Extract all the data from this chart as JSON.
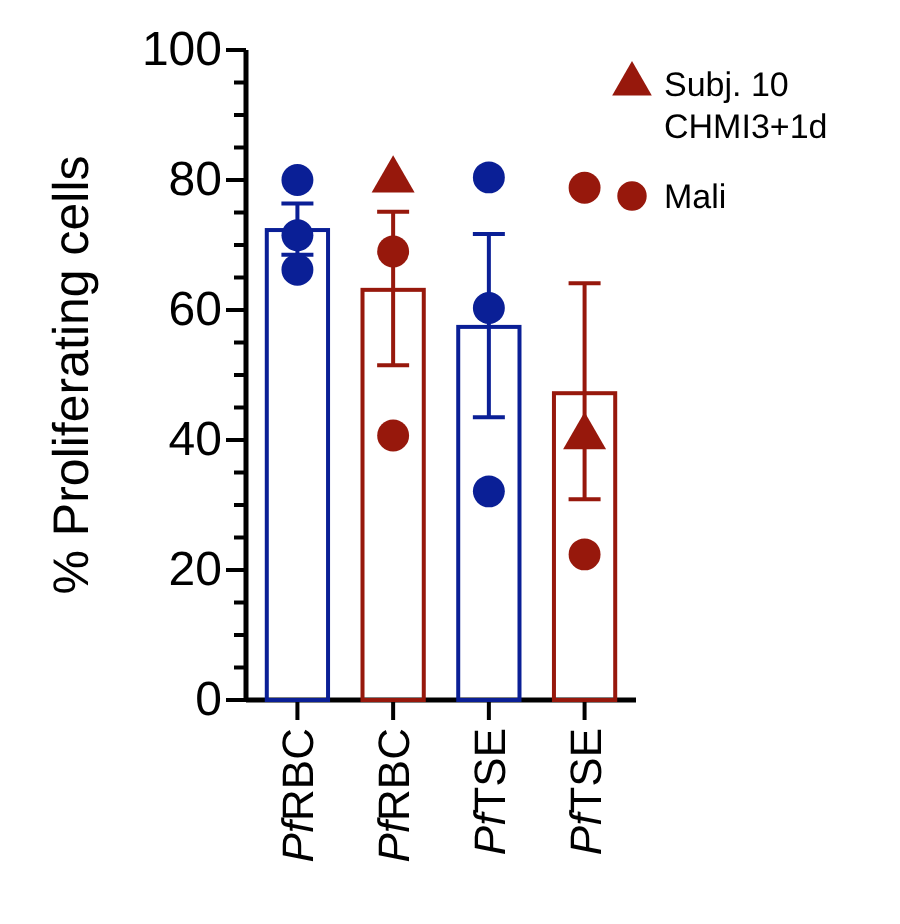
{
  "chart_data": {
    "type": "bar",
    "ylabel": "% Proliferating cells",
    "categories": [
      "PfRBC",
      "PfRBC",
      "PfTSE",
      "PfTSE"
    ],
    "ylim": [
      0,
      100
    ],
    "yticks": [
      0,
      {
        "value": 5,
        "label": null
      },
      {
        "value": 10,
        "label": null
      },
      {
        "value": 15,
        "label": null
      },
      20,
      {
        "value": 25,
        "label": null
      },
      {
        "value": 30,
        "label": null
      },
      {
        "value": 35,
        "label": null
      },
      40,
      {
        "value": 45,
        "label": null
      },
      {
        "value": 50,
        "label": null
      },
      {
        "value": 55,
        "label": null
      },
      60,
      {
        "value": 65,
        "label": null
      },
      {
        "value": 70,
        "label": null
      },
      {
        "value": 75,
        "label": null
      },
      80,
      {
        "value": 85,
        "label": null
      },
      {
        "value": 90,
        "label": null
      },
      {
        "value": 95,
        "label": null
      },
      100
    ],
    "grid": false,
    "legend": "top right",
    "series": [
      {
        "colors": [
          "#0a1f96",
          "#97180c",
          "#0a1f96",
          "#97180c"
        ],
        "values": [
          72.3,
          63.1,
          57.4,
          47.2
        ],
        "errors": [
          [
            68.5,
            76.4
          ],
          [
            51.5,
            75.1
          ],
          [
            43.5,
            71.7
          ],
          [
            30.9,
            64.1
          ]
        ]
      },
      {
        "type": "scatter",
        "name": "Subj. 10 CHMI3+1d",
        "marker": "triangle",
        "color": "#97180c",
        "values": [
          null,
          80,
          null,
          40.5
        ]
      },
      {
        "type": "scatter",
        "name": "Mali",
        "marker": "circle",
        "colors": [
          "#0a1f96",
          "#97180c",
          "#0a1f96",
          "#97180c"
        ],
        "values": [
          80,
          69,
          80.4,
          78.8
        ]
      },
      {
        "type": "scatter",
        "marker": "circle",
        "colors": [
          "#0a1f96",
          "#97180c",
          "#0a1f96",
          "#97180c"
        ],
        "values": [
          71.5,
          40.7,
          60.3,
          22.4
        ]
      },
      {
        "type": "scatter",
        "marker": "circle",
        "color": "#0a1f96",
        "values": [
          66.2,
          null,
          32.1,
          null
        ]
      }
    ]
  }
}
